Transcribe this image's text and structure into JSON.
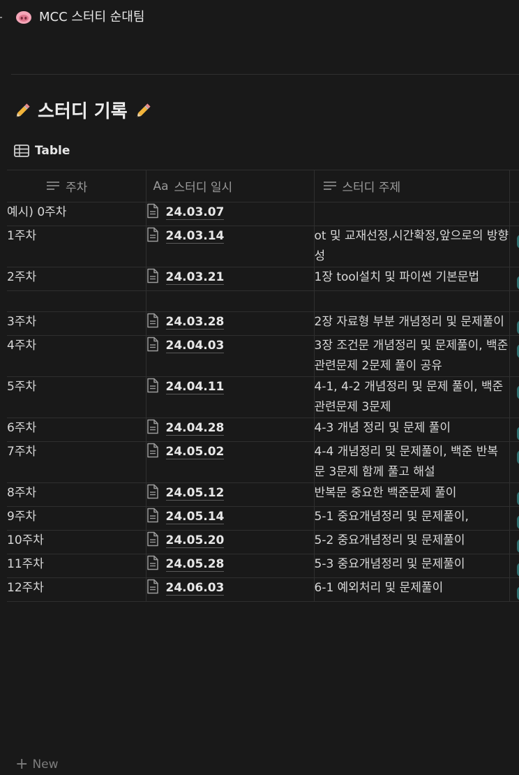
{
  "breadcrumb": {
    "icon": "pig-nose-icon",
    "title": "MCC 스터티 순대팀"
  },
  "heading": {
    "title": "스터디 기록",
    "icon": "pencil-icon"
  },
  "view": {
    "label": "Table",
    "icon": "table-icon"
  },
  "columns": [
    {
      "label": "주차",
      "icon": "text-lines-icon"
    },
    {
      "label": "스터디 일시",
      "prefix": "Aa",
      "icon": "title-icon"
    },
    {
      "label": "스터디 주제",
      "icon": "text-lines-icon"
    }
  ],
  "rows": [
    {
      "week": "예시) 0주차",
      "date": "24.03.07",
      "topic": ""
    },
    {
      "week": "1주차",
      "date": "24.03.14",
      "topic": "ot 및 교재선정,시간확정,앞으로의 방향성"
    },
    {
      "week": "2주차",
      "date": "24.03.21",
      "topic": "1장 tool설치 및 파이썬 기본문법"
    },
    {
      "week": "",
      "date": "",
      "topic": ""
    },
    {
      "week": "3주차",
      "date": "24.03.28",
      "topic": "2장 자료형 부분 개념정리 및 문제풀이"
    },
    {
      "week": "4주차",
      "date": "24.04.03",
      "topic": "3장 조건문 개념정리 및 문제풀이, 백준 관련문제 2문제 풀이 공유"
    },
    {
      "week": "5주차",
      "date": "24.04.11",
      "topic": "4-1, 4-2 개념정리 및 문제 풀이, 백준 관련문제 3문제"
    },
    {
      "week": "6주차",
      "date": "24.04.28",
      "topic": "4-3 개념 정리 및 문제 풀이"
    },
    {
      "week": "7주차",
      "date": "24.05.02",
      "topic": "4-4 개념정리 및 문제풀이, 백준 반복문 3문제 함께 풀고 해설"
    },
    {
      "week": "8주차",
      "date": "24.05.12",
      "topic": "반복문 중요한 백준문제 풀이"
    },
    {
      "week": "9주차",
      "date": "24.05.14",
      "topic": "5-1 중요개념정리 및 문제풀이,"
    },
    {
      "week": "10주차",
      "date": "24.05.20",
      "topic": "5-2 중요개념정리 및 문제풀이"
    },
    {
      "week": "11주차",
      "date": "24.05.28",
      "topic": "5-3 중요개념정리 및 문제풀이"
    },
    {
      "week": "12주차",
      "date": "24.06.03",
      "topic": "6-1 예외처리 및 문제풀이"
    }
  ],
  "new_row": {
    "label": "New",
    "icon": "plus-icon"
  },
  "colors": {
    "background": "#191919",
    "border": "#2f2f2f",
    "accent_teal": "#2f6f6f"
  }
}
